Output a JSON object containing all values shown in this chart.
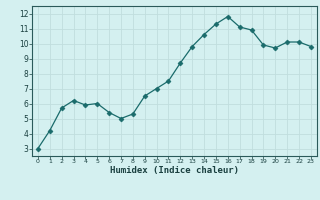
{
  "x": [
    0,
    1,
    2,
    3,
    4,
    5,
    6,
    7,
    8,
    9,
    10,
    11,
    12,
    13,
    14,
    15,
    16,
    17,
    18,
    19,
    20,
    21,
    22,
    23
  ],
  "y": [
    3.0,
    4.2,
    5.7,
    6.2,
    5.9,
    6.0,
    5.4,
    5.0,
    5.3,
    6.5,
    7.0,
    7.5,
    8.7,
    9.8,
    10.6,
    11.3,
    11.8,
    11.1,
    10.9,
    9.9,
    9.7,
    10.1,
    10.1,
    9.8
  ],
  "line_color": "#1a6b6b",
  "marker": "D",
  "marker_size": 2.5,
  "bg_color": "#d4f0f0",
  "grid_color": "#c0dede",
  "xlabel": "Humidex (Indice chaleur)",
  "xlim": [
    -0.5,
    23.5
  ],
  "ylim": [
    2.5,
    12.5
  ],
  "xticks": [
    0,
    1,
    2,
    3,
    4,
    5,
    6,
    7,
    8,
    9,
    10,
    11,
    12,
    13,
    14,
    15,
    16,
    17,
    18,
    19,
    20,
    21,
    22,
    23
  ],
  "yticks": [
    3,
    4,
    5,
    6,
    7,
    8,
    9,
    10,
    11,
    12
  ],
  "xlabel_color": "#1a4040",
  "tick_color": "#1a4040",
  "axis_color": "#2a5a5a"
}
